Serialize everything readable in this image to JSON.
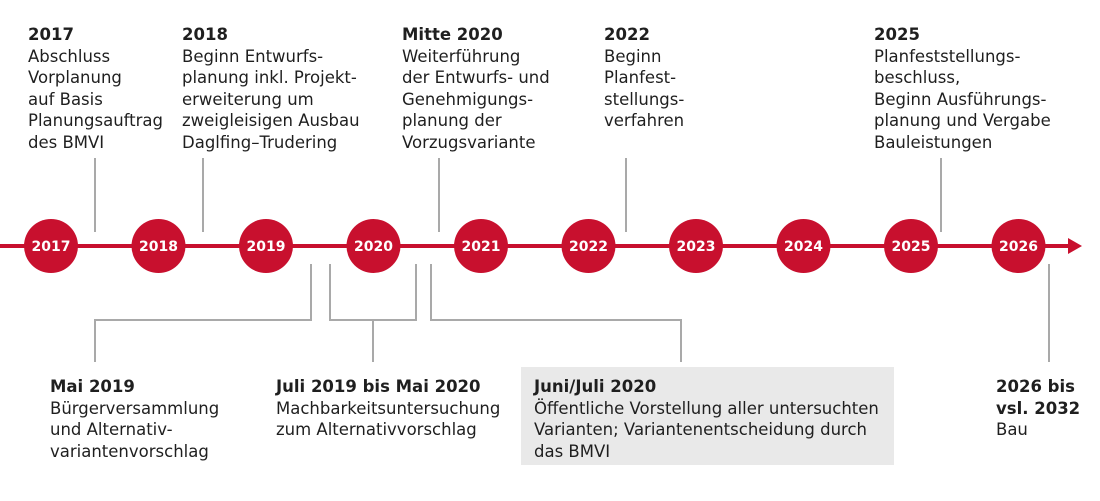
{
  "colors": {
    "accent": "#c8102e",
    "connector": "#a9a9a9",
    "highlight": "#e9e9e9"
  },
  "timeline": {
    "years": [
      "2017",
      "2018",
      "2019",
      "2020",
      "2021",
      "2022",
      "2023",
      "2024",
      "2025",
      "2026"
    ]
  },
  "top_notes": [
    {
      "head": "2017",
      "body": "Abschluss\nVorplanung\nauf Basis\nPlanungsauftrag\ndes BMVI"
    },
    {
      "head": "2018",
      "body": "Beginn Entwurfs-\nplanung inkl. Projekt-\nerweiterung um\nzweigleisigen Ausbau\nDaglfing–Trudering"
    },
    {
      "head": "Mitte 2020",
      "body": "Weiterführung\nder Entwurfs- und\nGenehmigungs-\nplanung der\nVorzugsvariante"
    },
    {
      "head": "2022",
      "body": "Beginn\nPlanfest-\nstellungs-\nverfahren"
    },
    {
      "head": "2025",
      "body": "Planfeststellungs-\nbeschluss,\nBeginn Ausführungs-\nplanung und Vergabe\nBauleistungen"
    }
  ],
  "bottom_notes": [
    {
      "head": "Mai 2019",
      "body": "Bürgerversammlung\nund Alternativ-\nvariantenvorschlag"
    },
    {
      "head": "Juli 2019 bis Mai 2020",
      "body": "Machbarkeitsuntersuchung\nzum Alternativvorschlag"
    },
    {
      "head": "Juni/Juli 2020",
      "body": "Öffentliche Vorstellung aller untersuchten\nVarianten; Variantenentscheidung durch\ndas BMVI"
    },
    {
      "head": "2026 bis\nvsl. 2032",
      "body": "Bau"
    }
  ]
}
